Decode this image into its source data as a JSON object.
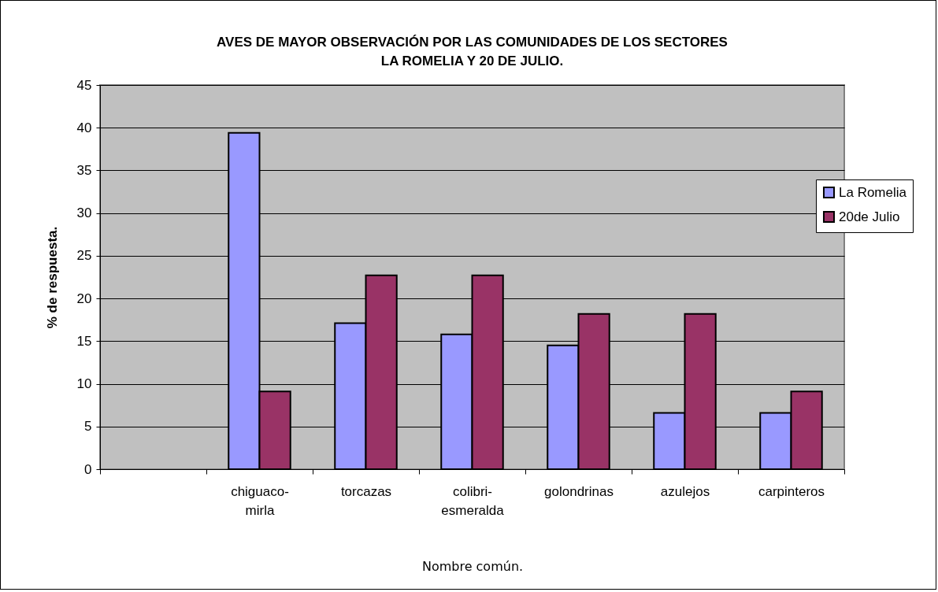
{
  "chart_data": {
    "type": "bar",
    "title": "AVES DE MAYOR OBSERVACIÓN POR LAS COMUNIDADES DE LOS SECTORES LA ROMELIA Y 20 DE JULIO.",
    "xlabel": "Nombre común.",
    "ylabel": "% de respuesta.",
    "categories": [
      null,
      "chiguaco-mirla",
      "torcazas",
      "colibri-esmeralda",
      "golondrinas",
      "azulejos",
      "carpinteros"
    ],
    "series": [
      {
        "name": "La Romelia",
        "color": "#9999ff",
        "values": [
          null,
          39.4,
          17.1,
          15.8,
          14.5,
          6.6,
          6.6
        ]
      },
      {
        "name": "20de Julio",
        "color": "#993366",
        "values": [
          null,
          9.1,
          22.7,
          22.7,
          18.2,
          18.2,
          9.1
        ]
      }
    ],
    "ylim": [
      0,
      45
    ],
    "yticks": [
      0,
      5,
      10,
      15,
      20,
      25,
      30,
      35,
      40,
      45
    ],
    "grid": "y",
    "legend": "right"
  }
}
